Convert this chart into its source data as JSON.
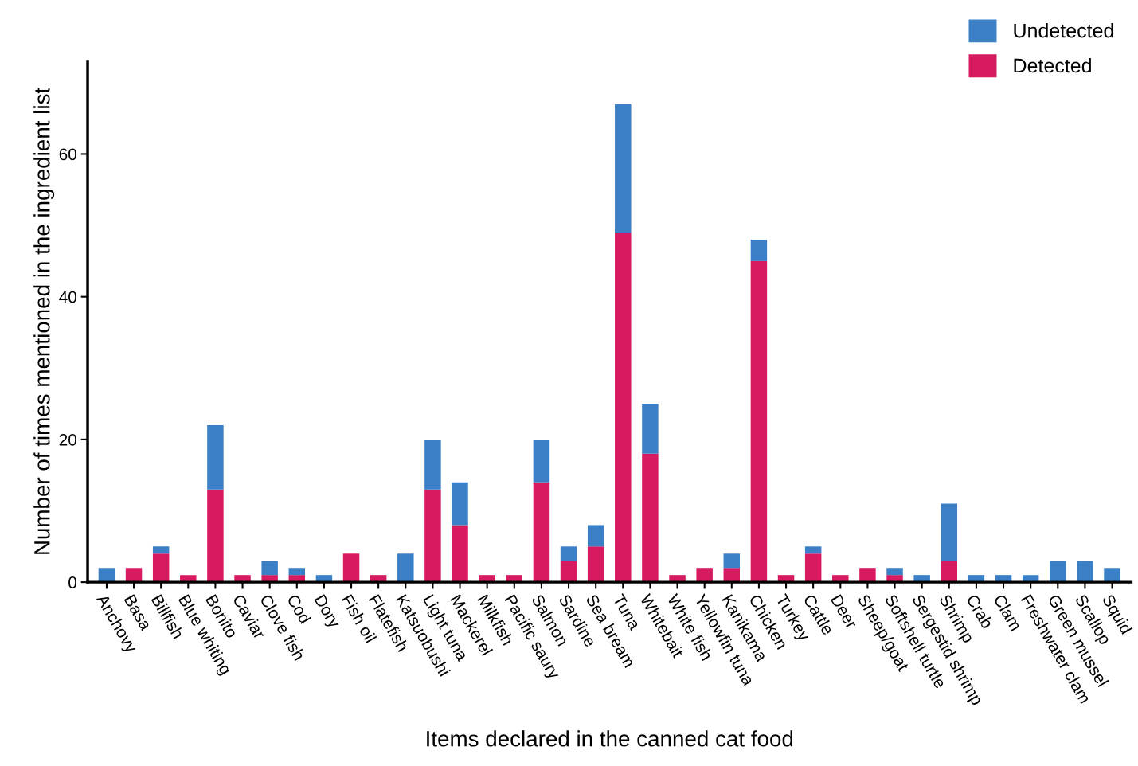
{
  "chart_data": {
    "type": "bar",
    "stacked": true,
    "xlabel": "Items declared in the canned cat food",
    "ylabel": "Number of times mentioned in the ingredient list",
    "categories": [
      "Anchovy",
      "Basa",
      "Billfish",
      "Blue whiting",
      "Bonito",
      "Caviar",
      "Clove fish",
      "Cod",
      "Dory",
      "Fish oil",
      "Flatefish",
      "Katsuobushi",
      "Light tuna",
      "Mackerel",
      "Milkfish",
      "Pacific saury",
      "Salmon",
      "Sardine",
      "Sea bream",
      "Tuna",
      "Whitebait",
      "White fish",
      "Yellowfin tuna",
      "Kanikama",
      "Chicken",
      "Turkey",
      "Cattle",
      "Deer",
      "Sheep/goat",
      "Softshell turtle",
      "Sergestid shrimp",
      "Shrimp",
      "Crab",
      "Clam",
      "Freshwater clam",
      "Green mussel",
      "Scallop",
      "Squid"
    ],
    "series": [
      {
        "name": "Detected",
        "color": "#d81b60",
        "values": [
          0,
          2,
          4,
          1,
          13,
          1,
          1,
          1,
          0,
          4,
          1,
          0,
          13,
          8,
          1,
          1,
          14,
          3,
          5,
          49,
          18,
          1,
          2,
          2,
          45,
          1,
          4,
          1,
          2,
          1,
          0,
          3,
          0,
          0,
          0,
          0,
          0,
          0
        ]
      },
      {
        "name": "Undetected",
        "color": "#3b80c6",
        "values": [
          2,
          0,
          1,
          0,
          9,
          0,
          2,
          1,
          1,
          0,
          0,
          4,
          7,
          6,
          0,
          0,
          6,
          2,
          3,
          18,
          7,
          0,
          0,
          2,
          3,
          0,
          1,
          0,
          0,
          1,
          1,
          8,
          1,
          1,
          1,
          3,
          3,
          2
        ]
      }
    ],
    "ylim": [
      0,
      73
    ],
    "yticks": [
      0,
      20,
      40,
      60
    ],
    "grid": false,
    "legend": "top right"
  }
}
